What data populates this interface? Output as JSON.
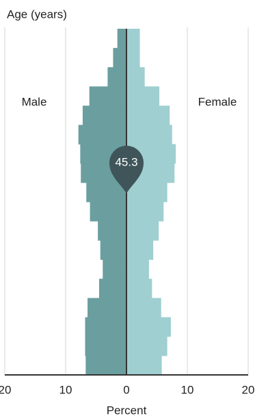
{
  "chart_data": {
    "type": "pyramid",
    "y_axis_label": "Age (years)",
    "x_axis_label": "Percent",
    "annotation": "45.3",
    "xlim": [
      -20,
      20
    ],
    "xticks": [
      {
        "value": -20,
        "label": "20"
      },
      {
        "value": -10,
        "label": "10"
      },
      0,
      10,
      20
    ],
    "grid": true,
    "series": [
      {
        "name": "Male",
        "color": "#6b9e9f",
        "values": [
          -6.7,
          -6.8,
          -6.8,
          -6.4,
          -4.5,
          -3.9,
          -4.3,
          -4.7,
          -6.0,
          -6.6,
          -7.5,
          -7.6,
          -7.9,
          -7.2,
          -6.1,
          -3.1,
          -2.2,
          -1.5
        ]
      },
      {
        "name": "Female",
        "color": "#9fcfd0",
        "values": [
          5.8,
          6.7,
          7.3,
          5.7,
          4.2,
          3.7,
          4.4,
          5.3,
          6.1,
          6.7,
          7.9,
          8.1,
          7.5,
          7.1,
          5.4,
          3.0,
          2.2,
          2.2
        ]
      }
    ]
  }
}
